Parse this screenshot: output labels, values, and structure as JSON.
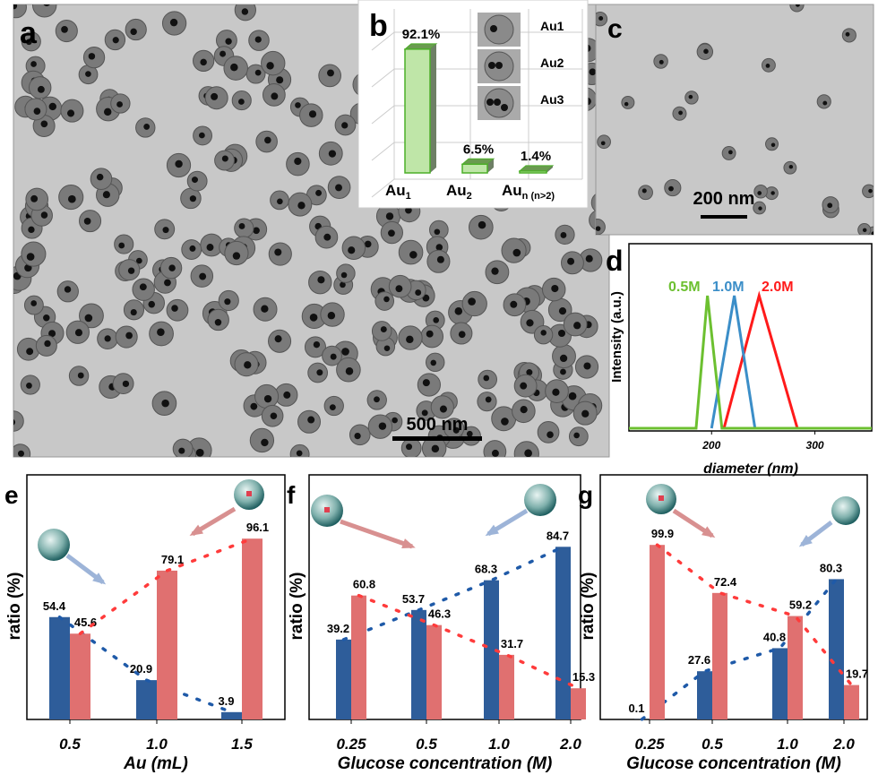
{
  "panel_a": {
    "label": "a",
    "scale_bar": "500 nm"
  },
  "panel_b": {
    "label": "b",
    "inset_labels": [
      "Au1",
      "Au2",
      "Au3"
    ]
  },
  "panel_c": {
    "label": "c",
    "scale_bar": "200 nm"
  },
  "chart_data": [
    {
      "id": "b",
      "type": "bar",
      "label": "b",
      "categories": [
        "Au1",
        "Au2",
        "Aun (n>2)"
      ],
      "values": [
        92.1,
        6.5,
        1.4
      ],
      "data_labels": [
        "92.1%",
        "6.5%",
        "1.4%"
      ],
      "color": "#8fd46a",
      "ylim": [
        0,
        100
      ]
    },
    {
      "id": "d",
      "type": "line",
      "label": "d",
      "xlabel": "diameter (nm)",
      "ylabel": "Intensity (a.u.)",
      "xlim": [
        120,
        355
      ],
      "xticks": [
        200,
        300
      ],
      "series": [
        {
          "name": "0.5M",
          "color": "#6cc030",
          "x": [
            120,
            185,
            196,
            210,
            355
          ],
          "y": [
            0,
            0,
            1,
            0,
            0
          ]
        },
        {
          "name": "1.0M",
          "color": "#3b8ec8",
          "x": [
            200,
            222,
            242
          ],
          "y": [
            0,
            1,
            0
          ]
        },
        {
          "name": "2.0M",
          "color": "#ff1a1a",
          "x": [
            212,
            246,
            283
          ],
          "y": [
            0,
            1,
            0
          ]
        }
      ]
    },
    {
      "id": "e",
      "type": "bar",
      "label": "e",
      "xlabel": "Au (mL)",
      "ylabel": "ratio (%)",
      "categories": [
        "0.5",
        "1.0",
        "1.5"
      ],
      "ylim": [
        0,
        130
      ],
      "series": [
        {
          "color": "#2e5d9a",
          "values": [
            54.4,
            20.9,
            3.9
          ]
        },
        {
          "color": "#e07070",
          "values": [
            45.6,
            79.1,
            96.1
          ]
        }
      ]
    },
    {
      "id": "f",
      "type": "bar",
      "label": "f",
      "xlabel": "Glucose concentration (M)",
      "ylabel": "ratio (%)",
      "categories": [
        "0.25",
        "0.5",
        "1.0",
        "2.0"
      ],
      "ylim": [
        0,
        120
      ],
      "series": [
        {
          "color": "#2e5d9a",
          "values": [
            39.2,
            53.7,
            68.3,
            84.7
          ]
        },
        {
          "color": "#e07070",
          "values": [
            60.8,
            46.3,
            31.7,
            15.3
          ]
        }
      ]
    },
    {
      "id": "g",
      "type": "bar",
      "label": "g",
      "xlabel": "Glucose concentration (M)",
      "ylabel": "ratio (%)",
      "categories": [
        "0.25",
        "0.5",
        "1.0",
        "2.0"
      ],
      "ylim": [
        0,
        140
      ],
      "series": [
        {
          "color": "#2e5d9a",
          "values": [
            0.1,
            27.6,
            40.8,
            80.3
          ]
        },
        {
          "color": "#e07070",
          "values": [
            99.9,
            72.4,
            59.2,
            19.7
          ]
        }
      ]
    }
  ]
}
